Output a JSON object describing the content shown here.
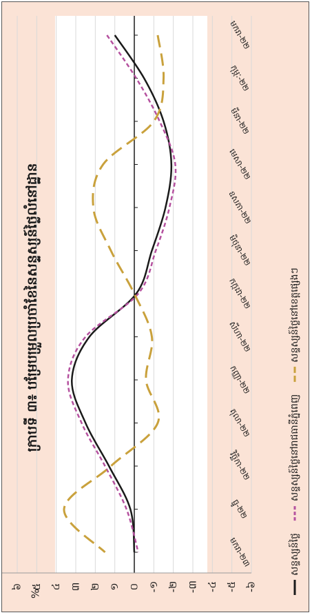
{
  "chart_data": {
    "type": "line",
    "title": "ក្រាបទី ៣៖ បម្រែបម្រួលប្រចាំខែនៃសន្ទស្សន៍ថ្លៃលំនៅដ្ឋាន",
    "ylabel": "%",
    "ylim": [
      -6,
      7
    ],
    "yticks": [
      "៧",
      "៦",
      "៥",
      "៤",
      "៣",
      "២",
      "១",
      "០",
      "-១",
      "-២",
      "-៣",
      "-៤",
      "-៥",
      "-៦"
    ],
    "categories": [
      "មករា-២២",
      "កុម្ភៈ-២២",
      "មីនា-២២",
      "មេសា-២២",
      "ឧសភា-២២",
      "មិថុនា-២២",
      "កក្កដា-២២",
      "សីហា-២២",
      "កញ្ញា-២២",
      "តុលា-២២",
      "វិច្ឆិកា-២២",
      "ធ្នូ-២២",
      "មករា-២៣"
    ],
    "series": [
      {
        "name": "សន្ទស្សន៍ថ្លៃ",
        "color": "#1a1a1a",
        "dash": "solid",
        "values": [
          1.0,
          -0.5,
          -1.5,
          -1.9,
          -1.6,
          -0.9,
          -0.1,
          2.3,
          3.2,
          2.5,
          1.3,
          0.2,
          0.0
        ]
      },
      {
        "name": "សន្ទស្សន៍ថ្លៃនៅរាជធានីភ្នំពេញ",
        "color": "#b5519f",
        "dash": "short",
        "values": [
          1.4,
          -0.1,
          -1.3,
          -2.1,
          -1.8,
          -1.1,
          -0.2,
          2.5,
          3.4,
          2.7,
          1.5,
          0.4,
          -0.2
        ]
      },
      {
        "name": "សន្ទស្សន៍ថ្លៃនៅខេត្តផ្សេងៗ",
        "color": "#c9a13c",
        "dash": "long",
        "values": [
          -1.2,
          -1.5,
          -1.0,
          1.6,
          2.1,
          1.2,
          0.0,
          -0.9,
          -0.6,
          -1.2,
          1.2,
          3.6,
          1.5
        ]
      }
    ],
    "grid": true,
    "legend": "bottom"
  }
}
